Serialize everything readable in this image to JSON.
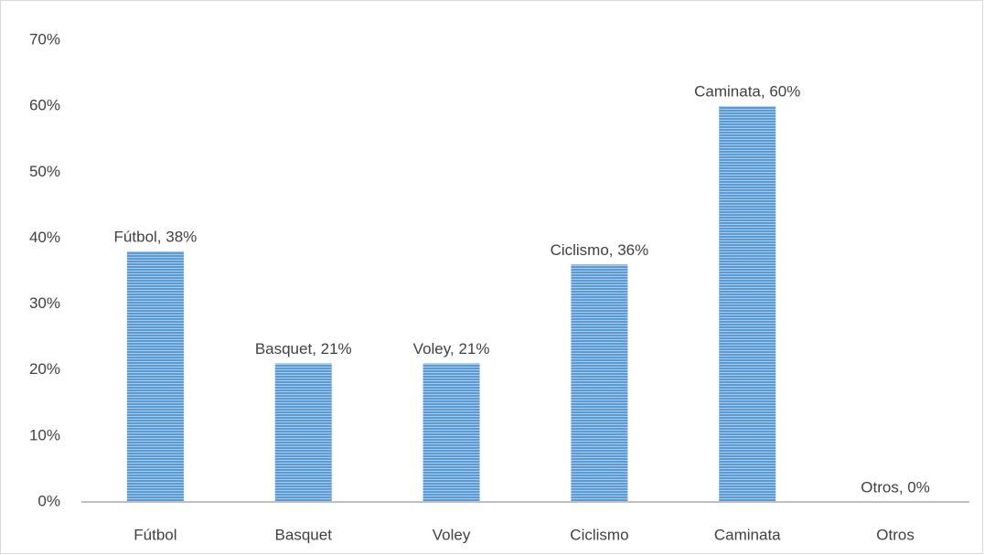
{
  "chart_data": {
    "type": "bar",
    "categories": [
      "Fútbol",
      "Basquet",
      "Voley",
      "Ciclismo",
      "Caminata",
      "Otros"
    ],
    "values": [
      38,
      21,
      21,
      36,
      60,
      0
    ],
    "value_labels": [
      "Fútbol, 38%",
      "Basquet, 21%",
      "Voley, 21%",
      "Ciclismo, 36%",
      "Caminata, 60%",
      "Otros, 0%"
    ],
    "color": "#5b9bd5",
    "ylim": [
      0,
      70
    ],
    "yticks": [
      {
        "value": 0,
        "label": "0%"
      },
      {
        "value": 10,
        "label": "10%"
      },
      {
        "value": 20,
        "label": "20%"
      },
      {
        "value": 30,
        "label": "30%"
      },
      {
        "value": 40,
        "label": "40%"
      },
      {
        "value": 50,
        "label": "50%"
      },
      {
        "value": 60,
        "label": "60%"
      },
      {
        "value": 70,
        "label": "70%"
      }
    ],
    "grid": false
  }
}
